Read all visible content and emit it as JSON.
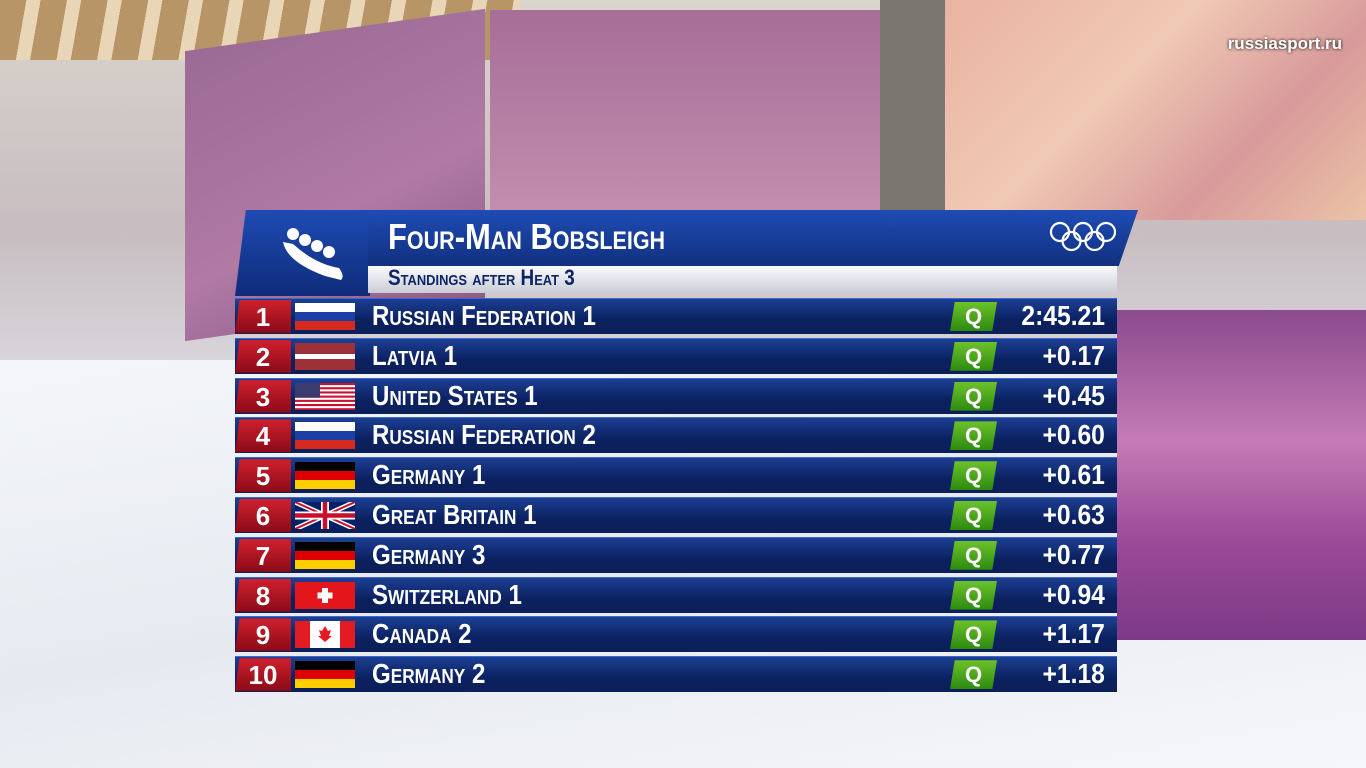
{
  "watermark": "russiasport.ru",
  "header": {
    "title": "Four-Man Bobsleigh",
    "subtitle": "Standings after Heat 3"
  },
  "table": {
    "rows": [
      [
        1,
        "Russian Federation 1",
        "Q",
        "2:45.21"
      ],
      [
        2,
        "Latvia 1",
        "Q",
        "+0.17"
      ],
      [
        3,
        "United States 1",
        "Q",
        "+0.45"
      ],
      [
        4,
        "Russian Federation 2",
        "Q",
        "+0.60"
      ],
      [
        5,
        "Germany 1",
        "Q",
        "+0.61"
      ],
      [
        6,
        "Great Britain 1",
        "Q",
        "+0.63"
      ],
      [
        7,
        "Germany 3",
        "Q",
        "+0.77"
      ],
      [
        8,
        "Switzerland 1",
        "Q",
        "+0.94"
      ],
      [
        9,
        "Canada 2",
        "Q",
        "+1.17"
      ],
      [
        10,
        "Germany 2",
        "Q",
        "+1.18"
      ]
    ]
  }
}
